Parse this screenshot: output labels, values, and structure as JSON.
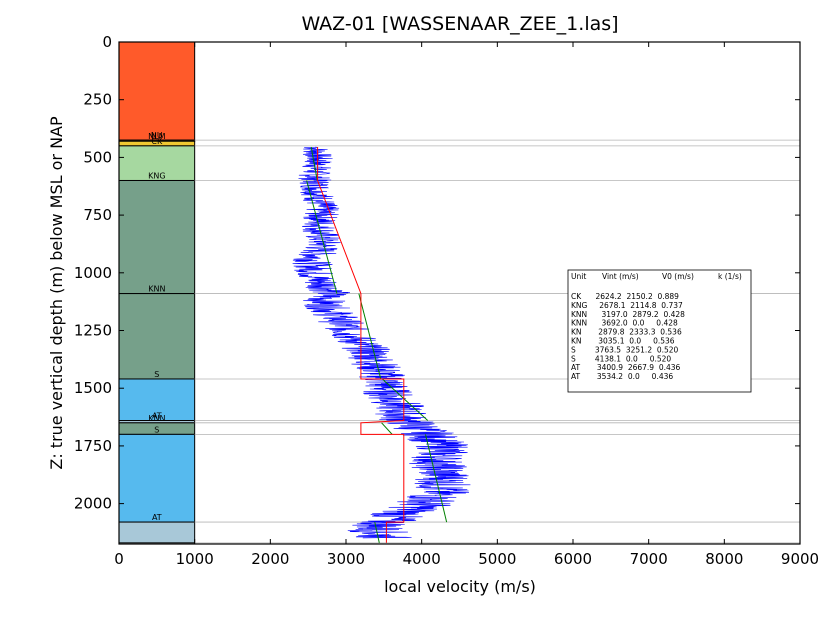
{
  "chart_data": {
    "type": "line",
    "title": "WAZ-01 [WASSENAAR_ZEE_1.las]",
    "xlabel": "local velocity (m/s)",
    "ylabel": "Z: true vertical depth (m) below MSL or NAP",
    "xlim": [
      0,
      9000
    ],
    "ylim": [
      2175,
      0
    ],
    "y_inverted": true,
    "x_ticks": [
      0,
      1000,
      2000,
      3000,
      4000,
      5000,
      6000,
      7000,
      8000,
      9000
    ],
    "y_ticks": [
      0,
      250,
      500,
      750,
      1000,
      1250,
      1500,
      1750,
      2000
    ],
    "grid": false,
    "units": [
      {
        "name": "",
        "top": 0,
        "bottom": 425,
        "color": "#ff5a2a"
      },
      {
        "name": "NU",
        "top": 425,
        "bottom": 430,
        "color": "#ff8c3c"
      },
      {
        "name": "NLM",
        "top": 430,
        "bottom": 450,
        "color": "#f0c832"
      },
      {
        "name": "CK",
        "top": 450,
        "bottom": 600,
        "color": "#a6d8a0"
      },
      {
        "name": "KNG",
        "top": 600,
        "bottom": 1090,
        "color": "#76a08a"
      },
      {
        "name": "KNN",
        "top": 1090,
        "bottom": 1460,
        "color": "#76a08a"
      },
      {
        "name": "S",
        "top": 1460,
        "bottom": 1640,
        "color": "#56baee"
      },
      {
        "name": "AT",
        "top": 1640,
        "bottom": 1650,
        "color": "#a8c8d8"
      },
      {
        "name": "KNN",
        "top": 1650,
        "bottom": 1700,
        "color": "#76a08a"
      },
      {
        "name": "S",
        "top": 1700,
        "bottom": 2080,
        "color": "#56baee"
      },
      {
        "name": "AT",
        "top": 2080,
        "bottom": 2170,
        "color": "#a8c8d8"
      }
    ],
    "boundaries": [
      425,
      450,
      600,
      1090,
      1460,
      1640,
      1650,
      1700,
      2080,
      2170
    ],
    "series": [
      {
        "color": "#0000ff",
        "style": "noisy",
        "points": [
          [
            2600,
            455
          ],
          [
            2630,
            520
          ],
          [
            2580,
            580
          ],
          [
            2620,
            650
          ],
          [
            2680,
            720
          ],
          [
            2650,
            800
          ],
          [
            2700,
            880
          ],
          [
            2550,
            950
          ],
          [
            2600,
            1020
          ],
          [
            2800,
            1080
          ],
          [
            2700,
            1130
          ],
          [
            2900,
            1200
          ],
          [
            3100,
            1280
          ],
          [
            3300,
            1340
          ],
          [
            3400,
            1400
          ],
          [
            3500,
            1460
          ],
          [
            3550,
            1520
          ],
          [
            3700,
            1580
          ],
          [
            3750,
            1630
          ],
          [
            3900,
            1660
          ],
          [
            4100,
            1700
          ],
          [
            4300,
            1760
          ],
          [
            4200,
            1820
          ],
          [
            4300,
            1890
          ],
          [
            4250,
            1950
          ],
          [
            4000,
            2010
          ],
          [
            3600,
            2060
          ],
          [
            3400,
            2110
          ],
          [
            3500,
            2150
          ]
        ]
      },
      {
        "color": "#008000",
        "style": "trend",
        "segments": [
          [
            [
              2540,
              455
            ],
            [
              2620,
              600
            ]
          ],
          [
            [
              2480,
              600
            ],
            [
              2880,
              1090
            ]
          ],
          [
            [
              3170,
              1090
            ],
            [
              3460,
              1460
            ]
          ],
          [
            [
              3480,
              1460
            ],
            [
              4080,
              1640
            ]
          ],
          [
            [
              3470,
              1650
            ],
            [
              3610,
              1700
            ]
          ],
          [
            [
              4050,
              1700
            ],
            [
              4330,
              2080
            ]
          ],
          [
            [
              3380,
              2080
            ],
            [
              3440,
              2170
            ]
          ]
        ]
      },
      {
        "color": "#ff0000",
        "style": "step",
        "steps": [
          {
            "top": 455,
            "bottom": 600,
            "v": 2624.2
          },
          {
            "top": 1090,
            "bottom": 1460,
            "v": 3197.0
          },
          {
            "top": 1460,
            "bottom": 1640,
            "v": 3763.5
          },
          {
            "top": 1650,
            "bottom": 1700,
            "v": 3197.0
          },
          {
            "top": 1700,
            "bottom": 2080,
            "v": 3763.5
          },
          {
            "top": 2080,
            "bottom": 2170,
            "v": 3534.2
          }
        ]
      }
    ],
    "table": {
      "header": [
        "Unit",
        "Vint (m/s)",
        "V0 (m/s)",
        "k (1/s)"
      ],
      "rows": [
        "CK      2624.2  2150.2  0.889",
        "KNG     2678.1  2114.8  0.737",
        "KNN      3197.0  2879.2  0.428",
        "KNN      3692.0  0.0     0.428",
        "KN       2879.8  2333.3  0.536",
        "KN       3035.1  0.0     0.536",
        "S        3763.5  3251.2  0.520",
        "S        4138.1  0.0     0.520",
        "AT       3400.9  2667.9  0.436",
        "AT       3534.2  0.0     0.436"
      ]
    }
  }
}
